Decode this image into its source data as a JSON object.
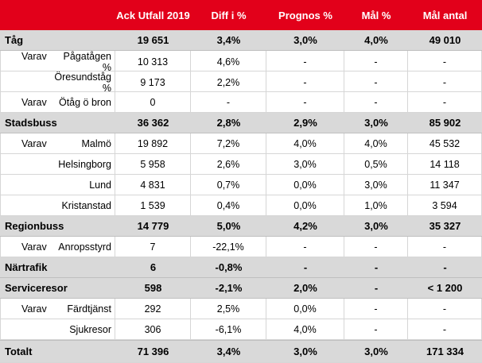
{
  "header": [
    "",
    "Ack Utfall 2019",
    "Diff i %",
    "Prognos %",
    "Mål %",
    "Mål antal"
  ],
  "rows": [
    {
      "type": "group",
      "label": "Tåg",
      "cells": [
        "19 651",
        "3,4%",
        "3,0%",
        "4,0%",
        "49 010"
      ]
    },
    {
      "type": "sub",
      "prefix": "Varav",
      "label": "Pågatågen %",
      "cells": [
        "10 313",
        "4,6%",
        "-",
        "-",
        "-"
      ]
    },
    {
      "type": "sub",
      "prefix": "",
      "label": "Öresundståg %",
      "cells": [
        "9 173",
        "2,2%",
        "-",
        "-",
        "-"
      ]
    },
    {
      "type": "sub",
      "prefix": "Varav",
      "label": "Ötåg ö bron",
      "cells": [
        "0",
        "-",
        "-",
        "-",
        "-"
      ]
    },
    {
      "type": "group",
      "label": "Stadsbuss",
      "cells": [
        "36 362",
        "2,8%",
        "2,9%",
        "3,0%",
        "85 902"
      ]
    },
    {
      "type": "sub",
      "prefix": "Varav",
      "label": "Malmö",
      "cells": [
        "19 892",
        "7,2%",
        "4,0%",
        "4,0%",
        "45 532"
      ]
    },
    {
      "type": "sub",
      "prefix": "",
      "label": "Helsingborg",
      "cells": [
        "5 958",
        "2,6%",
        "3,0%",
        "0,5%",
        "14 118"
      ]
    },
    {
      "type": "sub",
      "prefix": "",
      "label": "Lund",
      "cells": [
        "4 831",
        "0,7%",
        "0,0%",
        "3,0%",
        "11 347"
      ]
    },
    {
      "type": "sub",
      "prefix": "",
      "label": "Kristanstad",
      "cells": [
        "1 539",
        "0,4%",
        "0,0%",
        "1,0%",
        "3 594"
      ]
    },
    {
      "type": "group",
      "label": "Regionbuss",
      "cells": [
        "14 779",
        "5,0%",
        "4,2%",
        "3,0%",
        "35 327"
      ]
    },
    {
      "type": "sub",
      "prefix": "Varav",
      "label": "Anropsstyrd",
      "cells": [
        "7",
        "-22,1%",
        "-",
        "-",
        "-"
      ]
    },
    {
      "type": "group",
      "label": "Närtrafik",
      "cells": [
        "6",
        "-0,8%",
        "-",
        "-",
        "-"
      ]
    },
    {
      "type": "group",
      "label": "Serviceresor",
      "cells": [
        "598",
        "-2,1%",
        "2,0%",
        "-",
        "< 1 200"
      ]
    },
    {
      "type": "sub",
      "prefix": "Varav",
      "label": "Färdtjänst",
      "cells": [
        "292",
        "2,5%",
        "0,0%",
        "-",
        "-"
      ]
    },
    {
      "type": "sub",
      "prefix": "",
      "label": "Sjukresor",
      "cells": [
        "306",
        "-6,1%",
        "4,0%",
        "-",
        "-"
      ]
    },
    {
      "type": "total",
      "label": "Totalt",
      "cells": [
        "71 396",
        "3,4%",
        "3,0%",
        "3,0%",
        "171 334"
      ]
    }
  ]
}
